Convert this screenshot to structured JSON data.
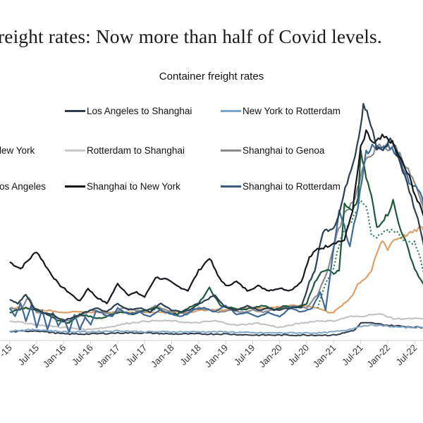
{
  "headline": "reight rates: Now more than half of Covid levels.",
  "chart_data": {
    "type": "line",
    "title": "Container freight rates",
    "xlabel": "",
    "ylabel": "",
    "y_axis_visible": false,
    "grid": false,
    "legend_position": "top",
    "x_ticks": [
      "-15",
      "Jul-15",
      "Jan-16",
      "Jul-16",
      "Jan-17",
      "Jul-17",
      "Jan-18",
      "Jul-18",
      "Jan-19",
      "Jul-19",
      "Jan-20",
      "Jul-20",
      "Jan-21",
      "Jul-21",
      "Jan-22",
      "Jul-22",
      "J"
    ],
    "x_tick_times": [
      2015.0,
      2015.5,
      2016.0,
      2016.5,
      2017.0,
      2017.5,
      2018.0,
      2018.5,
      2019.0,
      2019.5,
      2020.0,
      2020.5,
      2021.0,
      2021.5,
      2022.0,
      2022.5,
      2023.0
    ],
    "xlim": [
      2014.9,
      2023.05
    ],
    "ylim": [
      0,
      11000
    ],
    "legend": [
      {
        "label": "Los Angeles to Shanghai",
        "color": "#2f3b48"
      },
      {
        "label": "New York to Rotterdam",
        "color": "#7ea6c8"
      },
      {
        "label": "lew York",
        "color": "#8a8a8a"
      },
      {
        "label": "Rotterdam to Shanghai",
        "color": "#c8c8c8"
      },
      {
        "label": "Shanghai to Genoa",
        "color": "#8c8c8c"
      },
      {
        "label": "os Angeles",
        "color": "#111111"
      },
      {
        "label": "Shanghai to New York",
        "color": "#111111"
      },
      {
        "label": "Shanghai to Rotterdam",
        "color": "#3c5a7e"
      }
    ],
    "series": [
      {
        "name": "Shanghai to New York",
        "color": "#15191d",
        "width": 2.2,
        "x": [
          2015.0,
          2015.2,
          2015.35,
          2015.5,
          2015.7,
          2015.9,
          2016.1,
          2016.3,
          2016.45,
          2016.6,
          2016.8,
          2017.0,
          2017.2,
          2017.35,
          2017.5,
          2017.7,
          2017.9,
          2018.1,
          2018.3,
          2018.5,
          2018.7,
          2018.85,
          2019.0,
          2019.2,
          2019.4,
          2019.6,
          2019.8,
          2020.0,
          2020.2,
          2020.4,
          2020.55,
          2020.7,
          2020.85,
          2021.0,
          2021.2,
          2021.35,
          2021.5,
          2021.6,
          2021.75,
          2021.9,
          2022.05,
          2022.2,
          2022.4,
          2022.55,
          2022.7,
          2022.85,
          2023.0
        ],
        "y": [
          3600,
          3300,
          3700,
          4100,
          3300,
          2600,
          2200,
          1800,
          2400,
          2000,
          1700,
          2600,
          2100,
          2200,
          2000,
          2900,
          2800,
          2500,
          2300,
          3200,
          3800,
          3000,
          2500,
          2700,
          2300,
          2500,
          2300,
          2400,
          2300,
          2700,
          3800,
          4200,
          4300,
          4500,
          4600,
          6000,
          8800,
          9500,
          9000,
          9300,
          9200,
          8500,
          7500,
          6400,
          5600,
          4600,
          3800
        ]
      },
      {
        "name": "Shanghai to Los Angeles",
        "color": "#2a3f52",
        "width": 2.2,
        "x": [
          2015.0,
          2015.15,
          2015.3,
          2015.45,
          2015.6,
          2015.8,
          2016.0,
          2016.2,
          2016.4,
          2016.6,
          2016.8,
          2017.0,
          2017.2,
          2017.4,
          2017.6,
          2017.8,
          2018.0,
          2018.2,
          2018.4,
          2018.6,
          2018.8,
          2019.0,
          2019.2,
          2019.4,
          2019.6,
          2019.8,
          2020.0,
          2020.2,
          2020.4,
          2020.55,
          2020.65,
          2020.8,
          2020.9,
          2021.0,
          2021.1,
          2021.25,
          2021.4,
          2021.5,
          2021.55,
          2021.65,
          2021.8,
          2021.95,
          2022.05,
          2022.2,
          2022.4,
          2022.6,
          2022.75,
          2022.9,
          2023.0
        ],
        "y": [
          1900,
          1700,
          2100,
          1500,
          1300,
          1200,
          900,
          1100,
          1300,
          1500,
          1300,
          1700,
          1400,
          1500,
          1300,
          1700,
          1400,
          1300,
          1500,
          1800,
          2100,
          1500,
          1400,
          1600,
          1400,
          1500,
          1400,
          1500,
          1500,
          2700,
          3200,
          5000,
          5100,
          5200,
          5800,
          7300,
          8600,
          9900,
          10900,
          10200,
          8800,
          8800,
          9300,
          8400,
          6900,
          5200,
          3400,
          2200,
          1600
        ]
      },
      {
        "name": "Shanghai to Rotterdam",
        "color": "#3f6a98",
        "width": 2.2,
        "x": [
          2015.0,
          2015.1,
          2015.2,
          2015.3,
          2015.4,
          2015.5,
          2015.6,
          2015.7,
          2015.8,
          2015.9,
          2016.0,
          2016.1,
          2016.2,
          2016.3,
          2016.4,
          2016.5,
          2016.6,
          2016.75,
          2016.9,
          2017.0,
          2017.2,
          2017.4,
          2017.6,
          2017.8,
          2018.0,
          2018.2,
          2018.4,
          2018.6,
          2018.8,
          2019.0,
          2019.2,
          2019.4,
          2019.6,
          2019.8,
          2020.0,
          2020.2,
          2020.4,
          2020.6,
          2020.75,
          2020.85,
          2021.0,
          2021.1,
          2021.2,
          2021.3,
          2021.45,
          2021.6,
          2021.75,
          2021.85,
          2022.0,
          2022.2,
          2022.4,
          2022.6,
          2022.75,
          2022.9,
          2023.0
        ],
        "y": [
          1500,
          1100,
          1700,
          900,
          1600,
          600,
          1400,
          500,
          1300,
          700,
          1000,
          400,
          1200,
          500,
          1100,
          700,
          1400,
          1200,
          1100,
          1500,
          1200,
          1300,
          1100,
          1400,
          1200,
          1100,
          1400,
          1500,
          1300,
          1600,
          1200,
          1300,
          1100,
          1300,
          1100,
          1500,
          1300,
          1500,
          2200,
          1400,
          4200,
          5900,
          5200,
          4300,
          6200,
          8600,
          9000,
          8700,
          9000,
          8500,
          7300,
          6800,
          5600,
          3000,
          1500
        ]
      },
      {
        "name": "Shanghai to Genoa",
        "color": "#8c8c8c",
        "width": 2.2,
        "x": [
          2015.0,
          2015.2,
          2015.35,
          2015.5,
          2015.7,
          2015.9,
          2016.1,
          2016.3,
          2016.5,
          2016.7,
          2016.9,
          2017.1,
          2017.3,
          2017.5,
          2017.7,
          2017.9,
          2018.1,
          2018.3,
          2018.5,
          2018.7,
          2018.9,
          2019.1,
          2019.3,
          2019.5,
          2019.7,
          2019.9,
          2020.1,
          2020.3,
          2020.5,
          2020.7,
          2020.9,
          2021.05,
          2021.2,
          2021.4,
          2021.55,
          2021.7,
          2021.85,
          2022.0,
          2022.15,
          2022.3,
          2022.5,
          2022.7,
          2022.9,
          2023.0
        ],
        "y": [
          1500,
          1400,
          2000,
          1300,
          1200,
          1000,
          900,
          1100,
          1400,
          1300,
          1200,
          1500,
          1400,
          1300,
          1600,
          1400,
          1200,
          1300,
          1500,
          1400,
          1300,
          1400,
          1300,
          1400,
          1300,
          1400,
          1500,
          1600,
          1500,
          2100,
          3300,
          4800,
          5800,
          6600,
          8000,
          8600,
          8900,
          8800,
          8900,
          8200,
          7200,
          5700,
          4200,
          3000
        ]
      },
      {
        "name": "Shanghai to Genoa (green)",
        "color": "#1d5a3c",
        "width": 2.2,
        "x": [
          2015.0,
          2015.3,
          2015.5,
          2015.7,
          2015.9,
          2016.1,
          2016.3,
          2016.5,
          2016.7,
          2016.9,
          2017.1,
          2017.3,
          2017.5,
          2017.7,
          2017.9,
          2018.1,
          2018.3,
          2018.5,
          2018.7,
          2018.9,
          2019.1,
          2019.3,
          2019.5,
          2019.7,
          2019.9,
          2020.1,
          2020.3,
          2020.5,
          2020.65,
          2020.8,
          2020.9,
          2021.0,
          2021.1,
          2021.2,
          2021.35,
          2021.45,
          2021.5,
          2021.6,
          2021.7,
          2021.8,
          2021.9,
          2022.0,
          2022.1,
          2022.2,
          2022.35,
          2022.5,
          2022.65,
          2022.8,
          2022.95,
          2023.0
        ],
        "y": [
          1300,
          1500,
          1400,
          1200,
          900,
          800,
          1200,
          1100,
          1000,
          1200,
          1300,
          1200,
          1400,
          1500,
          1300,
          1200,
          1500,
          1700,
          2400,
          1600,
          1500,
          1400,
          1500,
          1600,
          1400,
          1600,
          1500,
          1700,
          2700,
          3200,
          3300,
          3100,
          3200,
          6200,
          5900,
          6500,
          8600,
          7500,
          6600,
          5200,
          5500,
          5800,
          6400,
          5400,
          4400,
          3300,
          2600,
          2100,
          1600,
          1400
        ]
      },
      {
        "name": "Green dotted",
        "color": "#2e7a5a",
        "width": 2.2,
        "dash": "2 3",
        "x": [
          2020.7,
          2020.85,
          2021.0,
          2021.1,
          2021.2,
          2021.3,
          2021.4,
          2021.5,
          2021.6,
          2021.7,
          2021.8,
          2021.9,
          2022.0,
          2022.1,
          2022.2,
          2022.35,
          2022.5,
          2022.6,
          2022.7,
          2022.8,
          2022.9,
          2023.0
        ],
        "y": [
          1500,
          2600,
          3300,
          4400,
          5100,
          5400,
          5800,
          6500,
          6200,
          4800,
          4700,
          4900,
          5000,
          5100,
          4900,
          4500,
          4500,
          3800,
          2800,
          2600,
          2000,
          1500
        ]
      },
      {
        "name": "Orange",
        "color": "#e0a068",
        "width": 2.2,
        "x": [
          2015.0,
          2015.3,
          2015.6,
          2016.0,
          2016.5,
          2017.0,
          2017.5,
          2018.0,
          2018.3,
          2018.6,
          2019.0,
          2019.4,
          2019.8,
          2020.2,
          2020.5,
          2020.7,
          2020.9,
          2021.0,
          2021.15,
          2021.25,
          2021.35,
          2021.45,
          2021.6,
          2021.7,
          2021.8,
          2021.9,
          2022.0,
          2022.1,
          2022.2,
          2022.3,
          2022.5,
          2022.6,
          2022.7,
          2022.8,
          2022.9,
          2023.0
        ],
        "y": [
          1500,
          1500,
          1400,
          1300,
          1300,
          1300,
          1300,
          1300,
          1300,
          1400,
          1400,
          1500,
          1500,
          1600,
          1600,
          1500,
          1300,
          1300,
          1600,
          1800,
          2100,
          2600,
          2900,
          3200,
          4000,
          4600,
          4200,
          4600,
          4700,
          4800,
          5000,
          5200,
          5000,
          4600,
          4000,
          3200
        ]
      },
      {
        "name": "Rotterdam to Shanghai",
        "color": "#c4c4c4",
        "width": 2.2,
        "x": [
          2015.0,
          2015.3,
          2015.6,
          2016.0,
          2016.4,
          2016.8,
          2017.2,
          2017.6,
          2018.0,
          2018.4,
          2018.8,
          2019.2,
          2019.6,
          2020.0,
          2020.4,
          2020.7,
          2021.0,
          2021.3,
          2021.5,
          2021.7,
          2021.9,
          2022.1,
          2022.4,
          2022.7,
          2023.0
        ],
        "y": [
          900,
          800,
          700,
          600,
          500,
          600,
          800,
          900,
          900,
          800,
          900,
          700,
          800,
          600,
          800,
          900,
          900,
          1100,
          1100,
          1200,
          1200,
          1000,
          1000,
          1000,
          900
        ]
      },
      {
        "name": "Los Angeles to Shanghai",
        "color": "#2f3b48",
        "width": 2.0,
        "x": [
          2015.0,
          2015.5,
          2016.0,
          2016.5,
          2017.0,
          2017.5,
          2018.0,
          2018.5,
          2019.0,
          2019.5,
          2020.0,
          2020.5,
          2020.8,
          2021.0,
          2021.2,
          2021.4,
          2021.5,
          2021.7,
          2022.0,
          2022.3,
          2022.6,
          2023.0
        ],
        "y": [
          400,
          450,
          300,
          300,
          350,
          350,
          300,
          300,
          300,
          250,
          250,
          250,
          250,
          250,
          350,
          500,
          800,
          800,
          700,
          650,
          600,
          550
        ]
      },
      {
        "name": "New York to Rotterdam",
        "color": "#7ea6c8",
        "width": 2.0,
        "x": [
          2015.0,
          2015.5,
          2016.0,
          2016.5,
          2017.0,
          2017.5,
          2018.0,
          2018.5,
          2019.0,
          2019.5,
          2020.0,
          2020.5,
          2020.8,
          2021.0,
          2021.2,
          2021.4,
          2021.6,
          2021.8,
          2022.0,
          2022.3,
          2022.6,
          2023.0
        ],
        "y": [
          450,
          500,
          400,
          400,
          450,
          400,
          400,
          400,
          400,
          350,
          350,
          350,
          350,
          400,
          450,
          600,
          700,
          700,
          650,
          600,
          600,
          550
        ]
      }
    ]
  }
}
